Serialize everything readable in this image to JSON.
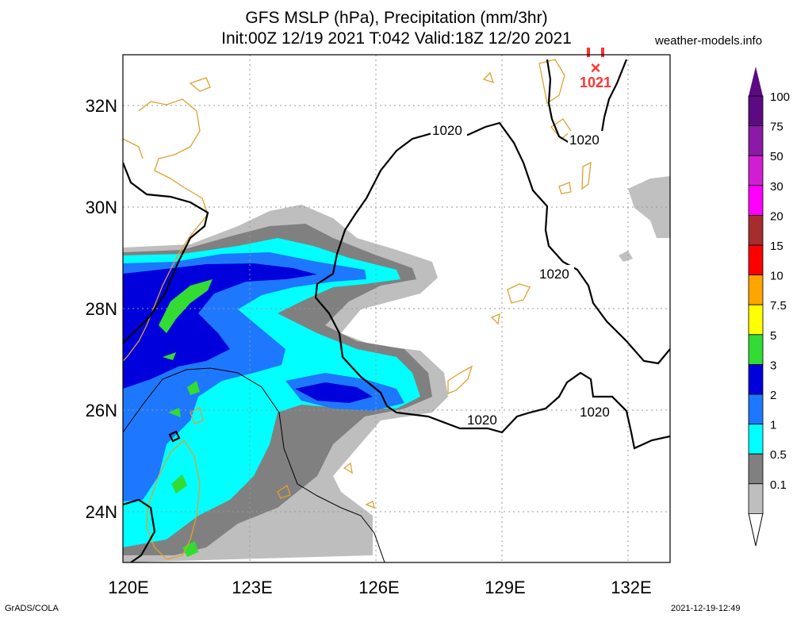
{
  "header": {
    "title_line1": "GFS MSLP (hPa), Precipitation (mm/3hr)",
    "title_line2": "Init:00Z 12/19 2021 T:042 Valid:18Z 12/20 2021",
    "site": "weather-models.info"
  },
  "footer": {
    "left": "GrADS/COLA",
    "right": "2021-12-19-12:49"
  },
  "map": {
    "lon_labels": [
      "120E",
      "123E",
      "126E",
      "129E",
      "132E"
    ],
    "lat_labels": [
      "32N",
      "30N",
      "28N",
      "26N",
      "24N"
    ],
    "isobar_labels": [
      "1020",
      "1020",
      "1020",
      "1020",
      "1020"
    ],
    "high_center": {
      "marker": "×",
      "label": "1021",
      "color": "#ff3333"
    }
  },
  "legend": {
    "levels": [
      {
        "label": "100",
        "color": "#5b0a82"
      },
      {
        "label": "75",
        "color": "#8c1aa6"
      },
      {
        "label": "50",
        "color": "#d21ed2"
      },
      {
        "label": "30",
        "color": "#ff00ff"
      },
      {
        "label": "20",
        "color": "#a52d2d"
      },
      {
        "label": "15",
        "color": "#ff0000"
      },
      {
        "label": "10",
        "color": "#ffa500"
      },
      {
        "label": "7.5",
        "color": "#ffff00"
      },
      {
        "label": "5",
        "color": "#32dc32"
      },
      {
        "label": "3",
        "color": "#0000dc"
      },
      {
        "label": "2",
        "color": "#1e78ff"
      },
      {
        "label": "1",
        "color": "#00ffff"
      },
      {
        "label": "0.5",
        "color": "#808080"
      },
      {
        "label": "0.1",
        "color": "#bebebe"
      }
    ]
  }
}
